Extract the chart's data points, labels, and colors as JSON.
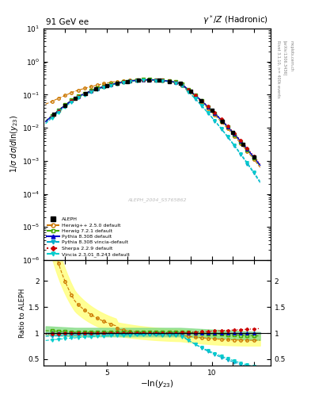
{
  "title_left": "91 GeV ee",
  "title_right": "$\\gamma^*/Z$ (Hadronic)",
  "ylabel_main": "$1/\\sigma\\ d\\sigma/d\\ln(y_{23})$",
  "ylabel_ratio": "Ratio to ALEPH",
  "xlabel": "$-\\ln(y_{23})$",
  "watermark": "ALEPH_2004_S5765862",
  "rivet_text": "Rivet 3.1.10, >= 400k events",
  "arxiv_text": "[arXiv:1306.3436]",
  "mcplots_text": "mcplots.cern.ch",
  "ylim_main_lo": 1e-06,
  "ylim_main_hi": 10,
  "ylim_ratio_lo": 0.38,
  "ylim_ratio_hi": 2.4,
  "xlim_lo": 2.0,
  "xlim_hi": 12.8,
  "colors": {
    "aleph": "#000000",
    "hwpp": "#cc7700",
    "hw7": "#44aa00",
    "py8": "#0000cc",
    "py8v": "#00aacc",
    "sherpa": "#cc0000",
    "vincia": "#00cccc"
  },
  "legend_labels": [
    "ALEPH",
    "Herwig++ 2.5.0 default",
    "Herwig 7.2.1 default",
    "Pythia 8.308 default",
    "Pythia 8.308 vincia-default",
    "Sherpa 2.2.9 default",
    "Vincia 2.3.01_8.243 default"
  ]
}
